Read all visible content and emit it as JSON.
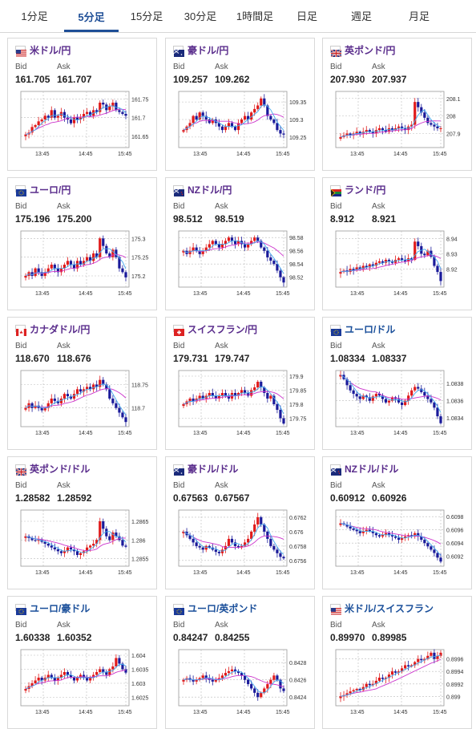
{
  "tabs": [
    {
      "label": "1分足",
      "active": false
    },
    {
      "label": "5分足",
      "active": true
    },
    {
      "label": "15分足",
      "active": false
    },
    {
      "label": "30分足",
      "active": false
    },
    {
      "label": "1時間足",
      "active": false
    },
    {
      "label": "日足",
      "active": false
    },
    {
      "label": "週足",
      "active": false
    },
    {
      "label": "月足",
      "active": false
    }
  ],
  "colors": {
    "pair_purple": "#5a2d8c",
    "pair_blue": "#1a4f9a",
    "up": "#e01a1a",
    "down": "#1a1a9a",
    "ma_long": "#cc33cc",
    "ma_short": "#44aaee",
    "tab_active": "#1f4f97"
  },
  "bid_label": "Bid",
  "ask_label": "Ask",
  "cards": [
    {
      "pair": "米ドル/円",
      "flag": "us-flag-icon",
      "pair_color": "#5a2d8c",
      "bid": "161.705",
      "ask": "161.707",
      "chart_data": {
        "type": "candlestick",
        "x_ticks": [
          "13:45",
          "14:45",
          "15:45"
        ],
        "y_ticks": [
          "161.75",
          "161.7",
          "161.65"
        ],
        "ylim": [
          161.62,
          161.77
        ],
        "series": [
          161.655,
          161.66,
          161.675,
          161.68,
          161.69,
          161.695,
          161.705,
          161.7,
          161.72,
          161.7,
          161.705,
          161.715,
          161.7,
          161.695,
          161.685,
          161.7,
          161.695,
          161.7,
          161.71,
          161.715,
          161.705,
          161.72,
          161.715,
          161.74,
          161.735,
          161.72,
          161.73,
          161.74,
          161.72,
          161.715,
          161.71,
          161.705
        ]
      }
    },
    {
      "pair": "豪ドル/円",
      "flag": "au-flag-icon",
      "pair_color": "#5a2d8c",
      "bid": "109.257",
      "ask": "109.262",
      "chart_data": {
        "type": "candlestick",
        "x_ticks": [
          "13:45",
          "14:45",
          "15:45"
        ],
        "y_ticks": [
          "109.35",
          "109.3",
          "109.25"
        ],
        "ylim": [
          109.22,
          109.38
        ],
        "series": [
          109.27,
          109.28,
          109.29,
          109.31,
          109.3,
          109.32,
          109.31,
          109.3,
          109.29,
          109.3,
          109.29,
          109.28,
          109.27,
          109.28,
          109.29,
          109.28,
          109.27,
          109.29,
          109.3,
          109.31,
          109.3,
          109.32,
          109.33,
          109.34,
          109.36,
          109.34,
          109.31,
          109.3,
          109.29,
          109.27,
          109.26,
          109.257
        ]
      }
    },
    {
      "pair": "英ポンド/円",
      "flag": "gb-flag-icon",
      "pair_color": "#5a2d8c",
      "bid": "207.930",
      "ask": "207.937",
      "chart_data": {
        "type": "candlestick",
        "x_ticks": [
          "13:45",
          "14:45",
          "15:45"
        ],
        "y_ticks": [
          "208.1",
          "208",
          "207.9"
        ],
        "ylim": [
          207.82,
          208.14
        ],
        "series": [
          207.88,
          207.89,
          207.9,
          207.89,
          207.9,
          207.91,
          207.9,
          207.91,
          207.92,
          207.91,
          207.9,
          207.92,
          207.93,
          207.92,
          207.91,
          207.93,
          207.92,
          207.93,
          207.94,
          207.93,
          207.92,
          207.94,
          207.95,
          208.08,
          208.05,
          208.02,
          207.99,
          207.96,
          207.95,
          207.94,
          207.93,
          207.93
        ]
      }
    },
    {
      "pair": "ユーロ/円",
      "flag": "eu-flag-icon",
      "pair_color": "#5a2d8c",
      "bid": "175.196",
      "ask": "175.200",
      "chart_data": {
        "type": "candlestick",
        "x_ticks": [
          "13:45",
          "14:45",
          "15:45"
        ],
        "y_ticks": [
          "175.3",
          "175.25",
          "175.2"
        ],
        "ylim": [
          175.17,
          175.32
        ],
        "series": [
          175.2,
          175.21,
          175.2,
          175.22,
          175.21,
          175.2,
          175.21,
          175.22,
          175.23,
          175.22,
          175.21,
          175.22,
          175.23,
          175.24,
          175.23,
          175.22,
          175.24,
          175.23,
          175.24,
          175.25,
          175.24,
          175.26,
          175.25,
          175.3,
          175.28,
          175.26,
          175.25,
          175.27,
          175.25,
          175.22,
          175.21,
          175.196
        ]
      }
    },
    {
      "pair": "NZドル/円",
      "flag": "nz-flag-icon",
      "pair_color": "#5a2d8c",
      "bid": "98.512",
      "ask": "98.519",
      "chart_data": {
        "type": "candlestick",
        "x_ticks": [
          "13:45",
          "14:45",
          "15:45"
        ],
        "y_ticks": [
          "98.58",
          "98.56",
          "98.54",
          "98.52"
        ],
        "ylim": [
          98.505,
          98.59
        ],
        "series": [
          98.56,
          98.555,
          98.56,
          98.565,
          98.56,
          98.555,
          98.56,
          98.565,
          98.57,
          98.575,
          98.57,
          98.565,
          98.57,
          98.575,
          98.58,
          98.575,
          98.57,
          98.575,
          98.57,
          98.565,
          98.57,
          98.575,
          98.58,
          98.575,
          98.565,
          98.56,
          98.55,
          98.545,
          98.54,
          98.53,
          98.52,
          98.512
        ]
      }
    },
    {
      "pair": "ランド/円",
      "flag": "za-flag-icon",
      "pair_color": "#5a2d8c",
      "bid": "8.912",
      "ask": "8.921",
      "chart_data": {
        "type": "candlestick",
        "x_ticks": [
          "13:45",
          "14:45",
          "15:45"
        ],
        "y_ticks": [
          "8.94",
          "8.93",
          "8.92"
        ],
        "ylim": [
          8.908,
          8.945
        ],
        "series": [
          8.918,
          8.919,
          8.918,
          8.92,
          8.919,
          8.921,
          8.92,
          8.922,
          8.921,
          8.923,
          8.922,
          8.924,
          8.925,
          8.924,
          8.926,
          8.925,
          8.924,
          8.926,
          8.927,
          8.926,
          8.925,
          8.927,
          8.926,
          8.938,
          8.935,
          8.93,
          8.929,
          8.932,
          8.928,
          8.922,
          8.918,
          8.912
        ]
      }
    },
    {
      "pair": "カナダドル/円",
      "flag": "ca-flag-icon",
      "pair_color": "#5a2d8c",
      "bid": "118.670",
      "ask": "118.676",
      "chart_data": {
        "type": "candlestick",
        "x_ticks": [
          "13:45",
          "14:45",
          "15:45"
        ],
        "y_ticks": [
          "118.75",
          "118.7"
        ],
        "ylim": [
          118.66,
          118.78
        ],
        "series": [
          118.7,
          118.71,
          118.7,
          118.705,
          118.7,
          118.695,
          118.7,
          118.71,
          118.72,
          118.715,
          118.71,
          118.72,
          118.73,
          118.725,
          118.72,
          118.73,
          118.74,
          118.735,
          118.74,
          118.745,
          118.74,
          118.75,
          118.745,
          118.76,
          118.75,
          118.74,
          118.72,
          118.71,
          118.7,
          118.69,
          118.68,
          118.67
        ]
      }
    },
    {
      "pair": "スイスフラン/円",
      "flag": "ch-flag-icon",
      "pair_color": "#5a2d8c",
      "bid": "179.731",
      "ask": "179.747",
      "chart_data": {
        "type": "candlestick",
        "x_ticks": [
          "13:45",
          "14:45",
          "15:45"
        ],
        "y_ticks": [
          "179.9",
          "179.85",
          "179.8",
          "179.75"
        ],
        "ylim": [
          179.72,
          179.92
        ],
        "series": [
          179.8,
          179.81,
          179.82,
          179.81,
          179.82,
          179.83,
          179.82,
          179.83,
          179.84,
          179.83,
          179.82,
          179.83,
          179.84,
          179.83,
          179.82,
          179.84,
          179.83,
          179.84,
          179.85,
          179.84,
          179.83,
          179.85,
          179.86,
          179.88,
          179.86,
          179.84,
          179.82,
          179.83,
          179.8,
          179.78,
          179.75,
          179.731
        ]
      }
    },
    {
      "pair": "ユーロ/ドル",
      "flag": "eu-flag-icon",
      "pair_color": "#1a4f9a",
      "bid": "1.08334",
      "ask": "1.08337",
      "chart_data": {
        "type": "candlestick",
        "x_ticks": [
          "13:45",
          "14:45",
          "15:45"
        ],
        "y_ticks": [
          "1.0838",
          "1.0836",
          "1.0834"
        ],
        "ylim": [
          1.0833,
          1.08395
        ],
        "series": [
          1.0839,
          1.08385,
          1.08378,
          1.08372,
          1.08368,
          1.08365,
          1.08362,
          1.08366,
          1.08364,
          1.0836,
          1.08365,
          1.08368,
          1.08366,
          1.08362,
          1.08358,
          1.0836,
          1.08364,
          1.08362,
          1.08358,
          1.08355,
          1.0836,
          1.08366,
          1.08372,
          1.08376,
          1.08374,
          1.0837,
          1.08366,
          1.08362,
          1.08358,
          1.08352,
          1.08342,
          1.08334
        ]
      }
    },
    {
      "pair": "英ポンド/ドル",
      "flag": "gb-flag-icon",
      "pair_color": "#5a2d8c",
      "bid": "1.28582",
      "ask": "1.28592",
      "chart_data": {
        "type": "candlestick",
        "x_ticks": [
          "13:45",
          "14:45",
          "15:45"
        ],
        "y_ticks": [
          "1.2865",
          "1.286",
          "1.2855"
        ],
        "ylim": [
          1.2853,
          1.2868
        ],
        "series": [
          1.2861,
          1.28605,
          1.286,
          1.28598,
          1.286,
          1.28595,
          1.2859,
          1.28585,
          1.2858,
          1.28575,
          1.2857,
          1.28565,
          1.2857,
          1.2858,
          1.28575,
          1.2857,
          1.2856,
          1.28565,
          1.2857,
          1.2858,
          1.28585,
          1.2859,
          1.286,
          1.2865,
          1.2863,
          1.2861,
          1.286,
          1.2862,
          1.2861,
          1.286,
          1.28585,
          1.28582
        ]
      }
    },
    {
      "pair": "豪ドル/ドル",
      "flag": "au-flag-icon",
      "pair_color": "#5a2d8c",
      "bid": "0.67563",
      "ask": "0.67567",
      "chart_data": {
        "type": "candlestick",
        "x_ticks": [
          "13:45",
          "14:45",
          "15:45"
        ],
        "y_ticks": [
          "0.6762",
          "0.676",
          "0.6758",
          "0.6756"
        ],
        "ylim": [
          0.67552,
          0.6763
        ],
        "series": [
          0.676,
          0.67595,
          0.6759,
          0.67585,
          0.6758,
          0.67578,
          0.67575,
          0.6758,
          0.67578,
          0.67575,
          0.67572,
          0.6757,
          0.67575,
          0.6758,
          0.6759,
          0.67585,
          0.6758,
          0.67578,
          0.6758,
          0.67585,
          0.6759,
          0.676,
          0.6761,
          0.6762,
          0.6761,
          0.676,
          0.6759,
          0.6758,
          0.67575,
          0.6757,
          0.67565,
          0.67563
        ]
      }
    },
    {
      "pair": "NZドル/ドル",
      "flag": "nz-flag-icon",
      "pair_color": "#5a2d8c",
      "bid": "0.60912",
      "ask": "0.60926",
      "chart_data": {
        "type": "candlestick",
        "x_ticks": [
          "13:45",
          "14:45",
          "15:45"
        ],
        "y_ticks": [
          "0.6098",
          "0.6096",
          "0.6094",
          "0.6092"
        ],
        "ylim": [
          0.60905,
          0.6099
        ],
        "series": [
          0.6097,
          0.60968,
          0.60965,
          0.60962,
          0.6096,
          0.60958,
          0.60955,
          0.60958,
          0.6096,
          0.60958,
          0.60955,
          0.60952,
          0.6095,
          0.60953,
          0.60955,
          0.60952,
          0.6095,
          0.60948,
          0.60945,
          0.60948,
          0.6095,
          0.60952,
          0.6095,
          0.60955,
          0.6095,
          0.60945,
          0.6094,
          0.60935,
          0.6093,
          0.60925,
          0.60918,
          0.60912
        ]
      }
    },
    {
      "pair": "ユーロ/豪ドル",
      "flag": "eu-flag-icon",
      "pair_color": "#1a4f9a",
      "bid": "1.60338",
      "ask": "1.60352",
      "chart_data": {
        "type": "candlestick",
        "x_ticks": [
          "13:45",
          "14:45",
          "15:45"
        ],
        "y_ticks": [
          "1.604",
          "1.6035",
          "1.603",
          "1.6025"
        ],
        "ylim": [
          1.6022,
          1.6042
        ],
        "series": [
          1.6028,
          1.6029,
          1.603,
          1.6031,
          1.6032,
          1.6031,
          1.6032,
          1.6033,
          1.6032,
          1.6031,
          1.6032,
          1.6033,
          1.6034,
          1.6033,
          1.6032,
          1.6031,
          1.6032,
          1.6033,
          1.6032,
          1.6031,
          1.6032,
          1.6033,
          1.6034,
          1.6035,
          1.6034,
          1.6033,
          1.6035,
          1.6036,
          1.6039,
          1.6037,
          1.6035,
          1.60338
        ]
      }
    },
    {
      "pair": "ユーロ/英ポンド",
      "flag": "eu-flag-icon",
      "pair_color": "#1a4f9a",
      "bid": "0.84247",
      "ask": "0.84255",
      "chart_data": {
        "type": "candlestick",
        "x_ticks": [
          "13:45",
          "14:45",
          "15:45"
        ],
        "y_ticks": [
          "0.8428",
          "0.8426",
          "0.8424"
        ],
        "ylim": [
          0.8423,
          0.84295
        ],
        "series": [
          0.8426,
          0.84262,
          0.8426,
          0.84258,
          0.8426,
          0.84262,
          0.84265,
          0.84262,
          0.8426,
          0.84258,
          0.8426,
          0.84262,
          0.84265,
          0.84268,
          0.8427,
          0.84272,
          0.8427,
          0.84268,
          0.84265,
          0.8426,
          0.84255,
          0.8425,
          0.84245,
          0.8424,
          0.84245,
          0.8425,
          0.84255,
          0.8426,
          0.84265,
          0.8426,
          0.8425,
          0.84247
        ]
      }
    },
    {
      "pair": "米ドル/スイスフラン",
      "flag": "us-flag-icon",
      "pair_color": "#1a4f9a",
      "bid": "0.89970",
      "ask": "0.89985",
      "chart_data": {
        "type": "candlestick",
        "x_ticks": [
          "13:45",
          "14:45",
          "15:45"
        ],
        "y_ticks": [
          "0.8996",
          "0.8994",
          "0.8992",
          "0.899"
        ],
        "ylim": [
          0.89885,
          0.89975
        ],
        "series": [
          0.899,
          0.89902,
          0.89905,
          0.89908,
          0.8991,
          0.89912,
          0.8991,
          0.89915,
          0.8992,
          0.89918,
          0.8992,
          0.89925,
          0.8993,
          0.89928,
          0.8993,
          0.89935,
          0.8994,
          0.89938,
          0.8994,
          0.89945,
          0.8995,
          0.89948,
          0.8995,
          0.89955,
          0.8996,
          0.89958,
          0.8996,
          0.89965,
          0.8997,
          0.8996,
          0.89965,
          0.8997
        ]
      }
    }
  ]
}
